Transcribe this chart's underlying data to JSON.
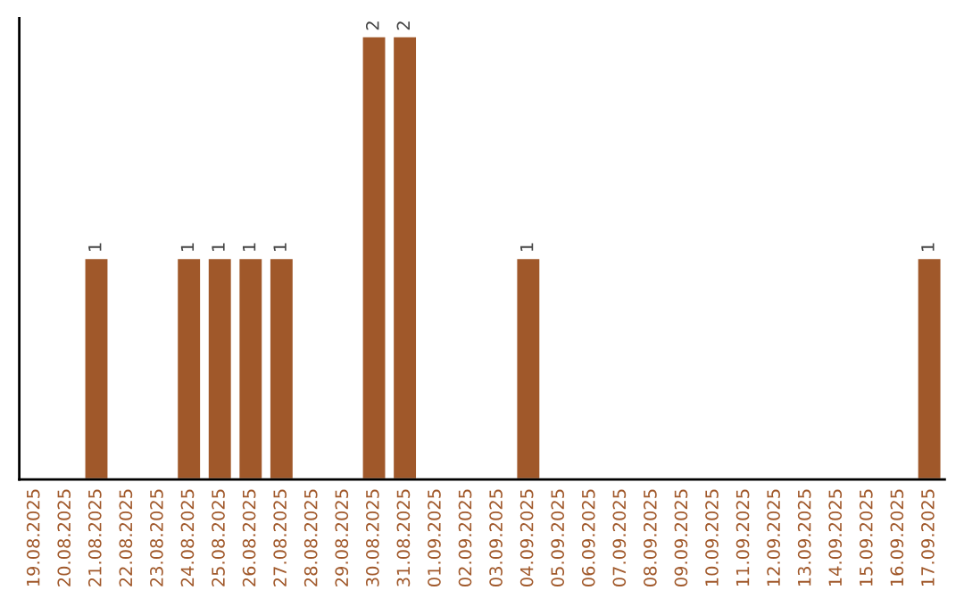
{
  "chart_data": {
    "type": "bar",
    "categories": [
      "19.08.2025",
      "20.08.2025",
      "21.08.2025",
      "22.08.2025",
      "23.08.2025",
      "24.08.2025",
      "25.08.2025",
      "26.08.2025",
      "27.08.2025",
      "28.08.2025",
      "29.08.2025",
      "30.08.2025",
      "31.08.2025",
      "01.09.2025",
      "02.09.2025",
      "03.09.2025",
      "04.09.2025",
      "05.09.2025",
      "06.09.2025",
      "07.09.2025",
      "08.09.2025",
      "09.09.2025",
      "10.09.2025",
      "11.09.2025",
      "12.09.2025",
      "13.09.2025",
      "14.09.2025",
      "15.09.2025",
      "16.09.2025",
      "17.09.2025"
    ],
    "values": [
      null,
      null,
      1,
      null,
      null,
      1,
      1,
      1,
      1,
      null,
      null,
      2,
      2,
      null,
      null,
      null,
      1,
      null,
      null,
      null,
      null,
      null,
      null,
      null,
      null,
      null,
      null,
      null,
      null,
      1
    ],
    "data_labels": true,
    "color": "#a0582a",
    "tick_labels": "x",
    "grid": false
  }
}
